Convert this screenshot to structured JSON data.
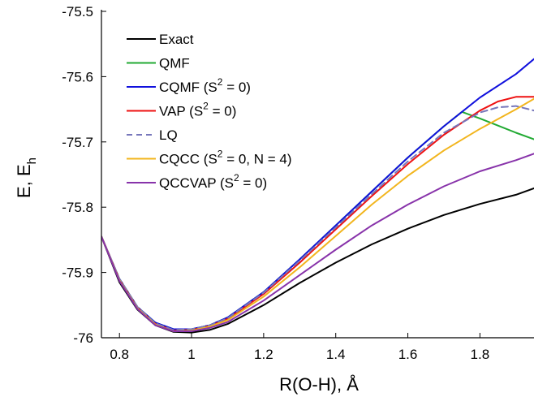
{
  "chart_data": {
    "type": "line",
    "title": "",
    "xlabel": "R(O-H), Å",
    "ylabel": "E, E",
    "ylabel_subscript": "h",
    "xlim": [
      0.75,
      1.95
    ],
    "ylim": [
      -76.0,
      -75.5
    ],
    "xticks": [
      0.8,
      1.0,
      1.2,
      1.4,
      1.6,
      1.8
    ],
    "xtick_labels": [
      "0.8",
      "1",
      "1.2",
      "1.4",
      "1.6",
      "1.8"
    ],
    "yticks": [
      -75.5,
      -75.6,
      -75.7,
      -75.8,
      -75.9,
      -76.0
    ],
    "ytick_labels": [
      "-75.5",
      "-75.6",
      "-75.7",
      "-75.8",
      "-75.9",
      "-76"
    ],
    "grid": false,
    "legend_position": "top-left",
    "series": [
      {
        "name": "Exact",
        "color": "#000000",
        "dash": "solid",
        "legend": [
          "Exact"
        ],
        "x": [
          0.75,
          0.8,
          0.85,
          0.9,
          0.95,
          1.0,
          1.05,
          1.1,
          1.2,
          1.3,
          1.4,
          1.5,
          1.6,
          1.7,
          1.8,
          1.9,
          1.95
        ],
        "y": [
          -75.845,
          -75.915,
          -75.957,
          -75.981,
          -75.991,
          -75.992,
          -75.988,
          -75.979,
          -75.95,
          -75.916,
          -75.885,
          -75.857,
          -75.833,
          -75.812,
          -75.795,
          -75.781,
          -75.771
        ]
      },
      {
        "name": "QMF",
        "color": "#22aa33",
        "dash": "solid",
        "legend": [
          "QMF"
        ],
        "x": [
          0.75,
          0.8,
          0.85,
          0.9,
          0.95,
          1.0,
          1.05,
          1.1,
          1.2,
          1.3,
          1.4,
          1.5,
          1.6,
          1.7,
          1.75,
          1.8,
          1.85,
          1.9,
          1.95
        ],
        "y": [
          -75.845,
          -75.91,
          -75.953,
          -75.977,
          -75.987,
          -75.987,
          -75.981,
          -75.969,
          -75.93,
          -75.88,
          -75.828,
          -75.776,
          -75.724,
          -75.676,
          -75.654,
          -75.664,
          -75.675,
          -75.686,
          -75.696
        ]
      },
      {
        "name": "CQMF (S² = 0)",
        "color": "#1010dd",
        "dash": "solid",
        "legend": [
          "CQMF (S",
          "2",
          " = 0)"
        ],
        "x": [
          0.75,
          0.8,
          0.85,
          0.9,
          0.95,
          1.0,
          1.05,
          1.1,
          1.2,
          1.3,
          1.4,
          1.5,
          1.6,
          1.7,
          1.8,
          1.9,
          1.95
        ],
        "y": [
          -75.845,
          -75.91,
          -75.953,
          -75.977,
          -75.987,
          -75.987,
          -75.981,
          -75.969,
          -75.93,
          -75.88,
          -75.828,
          -75.776,
          -75.724,
          -75.676,
          -75.632,
          -75.596,
          -75.573
        ]
      },
      {
        "name": "VAP (S² = 0)",
        "color": "#ee1111",
        "dash": "solid",
        "legend": [
          "VAP (S",
          "2",
          " = 0)"
        ],
        "x": [
          0.75,
          0.8,
          0.85,
          0.9,
          0.95,
          1.0,
          1.05,
          1.1,
          1.2,
          1.3,
          1.4,
          1.5,
          1.6,
          1.7,
          1.8,
          1.85,
          1.9,
          1.95
        ],
        "y": [
          -75.845,
          -75.911,
          -75.954,
          -75.979,
          -75.989,
          -75.988,
          -75.982,
          -75.971,
          -75.933,
          -75.885,
          -75.834,
          -75.783,
          -75.734,
          -75.689,
          -75.652,
          -75.638,
          -75.631,
          -75.631
        ]
      },
      {
        "name": "LQ",
        "color": "#7777bb",
        "dash": "dashed",
        "legend": [
          "LQ"
        ],
        "x": [
          0.75,
          0.8,
          0.85,
          0.9,
          0.95,
          1.0,
          1.05,
          1.1,
          1.2,
          1.3,
          1.4,
          1.5,
          1.6,
          1.7,
          1.8,
          1.85,
          1.9,
          1.95
        ],
        "y": [
          -75.845,
          -75.91,
          -75.953,
          -75.978,
          -75.988,
          -75.987,
          -75.981,
          -75.97,
          -75.931,
          -75.882,
          -75.831,
          -75.78,
          -75.73,
          -75.686,
          -75.655,
          -75.647,
          -75.645,
          -75.652
        ]
      },
      {
        "name": "CQCC (S² = 0, N = 4)",
        "color": "#f2b51d",
        "dash": "solid",
        "legend": [
          "CQCC (S",
          "2",
          " = 0, N = 4)"
        ],
        "x": [
          0.75,
          0.8,
          0.85,
          0.9,
          0.95,
          1.0,
          1.05,
          1.1,
          1.2,
          1.3,
          1.4,
          1.5,
          1.6,
          1.7,
          1.8,
          1.9,
          1.95
        ],
        "y": [
          -75.845,
          -75.912,
          -75.955,
          -75.98,
          -75.99,
          -75.989,
          -75.983,
          -75.973,
          -75.937,
          -75.892,
          -75.844,
          -75.796,
          -75.752,
          -75.713,
          -75.68,
          -75.65,
          -75.634
        ]
      },
      {
        "name": "QCCVAP (S² = 0)",
        "color": "#8833aa",
        "dash": "solid",
        "legend": [
          "QCCVAP (S",
          "2",
          " = 0)"
        ],
        "x": [
          0.75,
          0.8,
          0.85,
          0.9,
          0.95,
          1.0,
          1.05,
          1.1,
          1.2,
          1.3,
          1.4,
          1.5,
          1.6,
          1.7,
          1.8,
          1.9,
          1.95
        ],
        "y": [
          -75.845,
          -75.913,
          -75.956,
          -75.981,
          -75.99,
          -75.99,
          -75.985,
          -75.976,
          -75.943,
          -75.904,
          -75.865,
          -75.828,
          -75.796,
          -75.768,
          -75.745,
          -75.728,
          -75.718
        ]
      }
    ]
  }
}
